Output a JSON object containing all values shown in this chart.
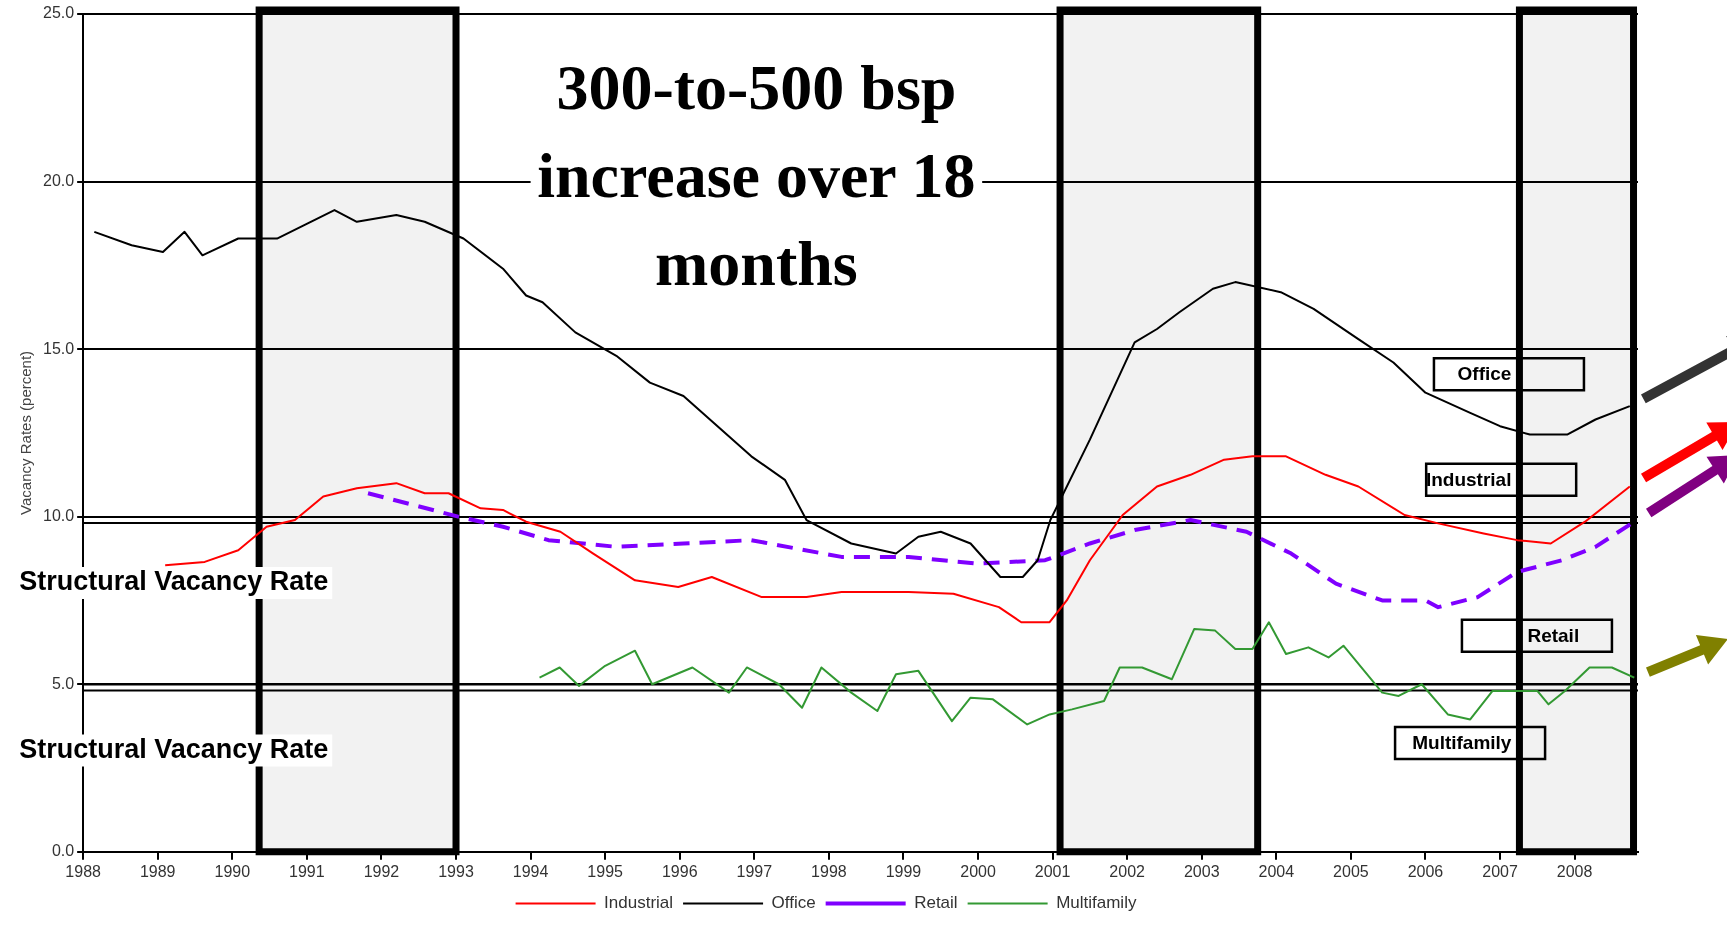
{
  "chart_data": {
    "type": "line",
    "ylabel": "Vacancy Rates (percent)",
    "xlim": [
      1988,
      2008.85
    ],
    "xticks": [
      1988,
      1989,
      1990,
      1991,
      1992,
      1993,
      1994,
      1995,
      1996,
      1997,
      1998,
      1999,
      2000,
      2001,
      2002,
      2003,
      2004,
      2005,
      2006,
      2007,
      2008
    ],
    "ylim": [
      0,
      25
    ],
    "yticks": [
      {
        "value": 0,
        "label": "0.0"
      },
      {
        "value": 5,
        "label": "5.0"
      },
      {
        "value": 10,
        "label": "10.0"
      },
      {
        "value": 15,
        "label": "15.0"
      },
      {
        "value": 20,
        "label": "20.0"
      },
      {
        "value": 25,
        "label": "25.0"
      }
    ],
    "grid": "y",
    "legend": "bottom",
    "marker": "none",
    "series": [
      {
        "name": "Industrial",
        "color": "#ff0000",
        "x": [
          1989.1,
          1989.63,
          1990.08,
          1990.46,
          1990.84,
          1991.22,
          1991.67,
          1992.2,
          1992.58,
          1992.9,
          1993.33,
          1993.63,
          1993.94,
          1994.4,
          1994.84,
          1995.4,
          1995.98,
          1996.43,
          1997.1,
          1997.7,
          1998.17,
          1999.07,
          1999.67,
          2000.28,
          2000.58,
          2000.96,
          2001.19,
          2001.5,
          2001.94,
          2002.4,
          2002.85,
          2003.3,
          2003.68,
          2004.13,
          2004.66,
          2005.1,
          2005.72,
          2006.17,
          2006.78,
          2007.23,
          2007.68,
          2008.14,
          2008.74
        ],
        "values": [
          8.55,
          8.65,
          9.0,
          9.7,
          9.9,
          10.6,
          10.85,
          11.0,
          10.7,
          10.7,
          10.25,
          10.2,
          9.85,
          9.55,
          8.9,
          8.1,
          7.9,
          8.2,
          7.6,
          7.6,
          7.75,
          7.75,
          7.7,
          7.3,
          6.85,
          6.85,
          7.5,
          8.7,
          10.05,
          10.9,
          11.25,
          11.7,
          11.8,
          11.8,
          11.25,
          10.9,
          10.05,
          9.8,
          9.5,
          9.3,
          9.2,
          9.85,
          10.9
        ]
      },
      {
        "name": "Office",
        "color": "#000000",
        "x": [
          1988.15,
          1988.65,
          1989.07,
          1989.36,
          1989.6,
          1990.08,
          1990.6,
          1991.37,
          1991.67,
          1992.2,
          1992.58,
          1993.1,
          1993.63,
          1993.94,
          1994.16,
          1994.6,
          1995.15,
          1995.6,
          1996.05,
          1996.96,
          1997.41,
          1997.7,
          1998.3,
          1998.9,
          1999.2,
          1999.5,
          1999.9,
          2000.3,
          2000.6,
          2000.8,
          2000.97,
          2001.5,
          2002.1,
          2002.4,
          2002.7,
          2003.15,
          2003.45,
          2004.06,
          2004.5,
          2005.1,
          2005.57,
          2006.0,
          2006.6,
          2007.0,
          2007.4,
          2007.9,
          2008.28,
          2008.74
        ],
        "values": [
          18.5,
          18.1,
          17.9,
          18.5,
          17.8,
          18.3,
          18.3,
          19.15,
          18.8,
          19.0,
          18.8,
          18.3,
          17.4,
          16.6,
          16.4,
          15.5,
          14.8,
          14.0,
          13.6,
          11.8,
          11.1,
          9.9,
          9.2,
          8.9,
          9.4,
          9.55,
          9.2,
          8.2,
          8.2,
          8.7,
          9.9,
          12.3,
          15.2,
          15.6,
          16.1,
          16.8,
          17.0,
          16.7,
          16.2,
          15.3,
          14.6,
          13.7,
          13.1,
          12.7,
          12.45,
          12.45,
          12.9,
          13.3
        ]
      },
      {
        "name": "Retail",
        "color": "#7f00ff",
        "line_style": "dashed",
        "x": [
          1991.82,
          1992.43,
          1993.03,
          1993.63,
          1994.24,
          1995.15,
          1996.05,
          1996.96,
          1997.56,
          1998.17,
          1999.07,
          1999.98,
          2000.9,
          2001.5,
          2002.1,
          2002.85,
          2003.6,
          2004.2,
          2004.8,
          2005.42,
          2006.0,
          2006.17,
          2006.7,
          2007.23,
          2007.83,
          2008.28,
          2008.8
        ],
        "values": [
          10.7,
          10.35,
          10.0,
          9.7,
          9.3,
          9.1,
          9.2,
          9.3,
          9.05,
          8.8,
          8.8,
          8.6,
          8.7,
          9.2,
          9.6,
          9.9,
          9.55,
          8.9,
          8.0,
          7.5,
          7.5,
          7.3,
          7.6,
          8.35,
          8.7,
          9.1,
          9.85
        ]
      },
      {
        "name": "Multifamily",
        "color": "#339933",
        "x": [
          1994.12,
          1994.39,
          1994.65,
          1995.0,
          1995.4,
          1995.63,
          1996.17,
          1996.66,
          1996.9,
          1997.33,
          1997.64,
          1997.9,
          1998.3,
          1998.65,
          1998.9,
          1999.2,
          1999.65,
          1999.9,
          2000.2,
          2000.66,
          2000.96,
          2001.26,
          2001.69,
          2001.9,
          2002.2,
          2002.6,
          2002.9,
          2003.18,
          2003.45,
          2003.68,
          2003.9,
          2004.13,
          2004.43,
          2004.7,
          2004.9,
          2005.42,
          2005.64,
          2005.95,
          2006.3,
          2006.6,
          2006.9,
          2007.5,
          2007.65,
          2007.87,
          2008.2,
          2008.5,
          2008.8
        ],
        "values": [
          5.2,
          5.5,
          4.95,
          5.55,
          6.0,
          5.0,
          5.5,
          4.75,
          5.5,
          5.0,
          4.3,
          5.5,
          4.75,
          4.2,
          5.3,
          5.4,
          3.9,
          4.6,
          4.55,
          3.8,
          4.1,
          4.25,
          4.5,
          5.5,
          5.5,
          5.15,
          6.65,
          6.6,
          6.05,
          6.05,
          6.85,
          5.9,
          6.1,
          5.8,
          6.15,
          4.75,
          4.65,
          5.0,
          4.1,
          3.95,
          4.8,
          4.8,
          4.4,
          4.8,
          5.5,
          5.5,
          5.2
        ]
      }
    ],
    "ref_lines": [
      {
        "axis": "y",
        "value": 9.9,
        "label": "Structural Vacancy Rate",
        "color": "#000000"
      },
      {
        "axis": "y",
        "value": 4.9,
        "label": "Structural Vacancy Rate",
        "color": "#000000"
      }
    ],
    "bands": [
      {
        "axis": "x",
        "from": 1990.36,
        "to": 1993.0,
        "color": "#000000"
      },
      {
        "axis": "x",
        "from": 2001.1,
        "to": 2003.75,
        "color": "#000000"
      },
      {
        "axis": "x",
        "from": 2007.26,
        "to": 2008.79,
        "color": "#000000"
      }
    ],
    "annotations": [
      "300-to-500 bsp increase over 18 months",
      "Office",
      "Industrial",
      "Retail",
      "Multifamily"
    ]
  }
}
